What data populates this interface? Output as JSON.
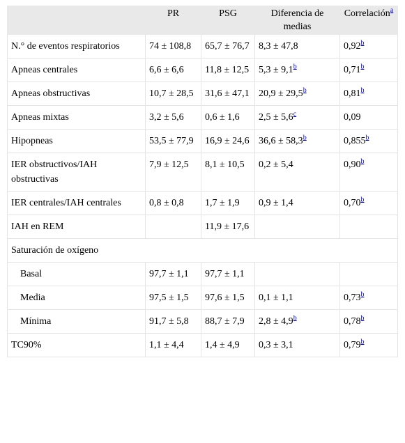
{
  "table": {
    "header": {
      "columns": [
        "PR",
        "PSG",
        "Diferencia de medias",
        "Correlación"
      ],
      "footnote_ref": "a"
    },
    "rows": [
      {
        "label": "N.° de eventos respiratorios",
        "cells": [
          {
            "text": "74 ± 108,8"
          },
          {
            "text": "65,7 ± 76,7"
          },
          {
            "text": "8,3 ± 47,8"
          },
          {
            "text": "0,92",
            "note": "b"
          }
        ]
      },
      {
        "label": "Apneas centrales",
        "cells": [
          {
            "text": "6,6 ± 6,6"
          },
          {
            "text": "11,8 ± 12,5"
          },
          {
            "text": "5,3 ± 9,1",
            "note": "b"
          },
          {
            "text": "0,71",
            "note": "b"
          }
        ]
      },
      {
        "label": "Apneas obstructivas",
        "cells": [
          {
            "text": "10,7 ± 28,5"
          },
          {
            "text": "31,6 ± 47,1"
          },
          {
            "text": "20,9 ± 29,5",
            "note": "b"
          },
          {
            "text": "0,81",
            "note": "b"
          }
        ]
      },
      {
        "label": "Apneas mixtas",
        "cells": [
          {
            "text": "3,2 ± 5,6"
          },
          {
            "text": "0,6 ± 1,6"
          },
          {
            "text": "2,5 ± 5,6",
            "note": "c"
          },
          {
            "text": "0,09"
          }
        ]
      },
      {
        "label": "Hipopneas",
        "cells": [
          {
            "text": "53,5 ± 77,9"
          },
          {
            "text": "16,9 ± 24,6"
          },
          {
            "text": "36,6 ± 58,3",
            "note": "b"
          },
          {
            "text": "0,855",
            "note": "b"
          }
        ]
      },
      {
        "label": "IER obstructivos/IAH obstructivas",
        "cells": [
          {
            "text": "7,9 ± 12,5"
          },
          {
            "text": "8,1 ± 10,5"
          },
          {
            "text": "0,2 ± 5,4"
          },
          {
            "text": "0,90",
            "note": "b"
          }
        ]
      },
      {
        "label": "IER centrales/IAH centrales",
        "cells": [
          {
            "text": "0,8 ± 0,8"
          },
          {
            "text": "1,7 ± 1,9"
          },
          {
            "text": "0,9 ± 1,4"
          },
          {
            "text": "0,70",
            "note": "b"
          }
        ]
      },
      {
        "label": "IAH en REM",
        "cells": [
          null,
          {
            "text": "11,9 ± 17,6"
          },
          null,
          null
        ]
      },
      {
        "label": "Saturación de oxígeno",
        "section": true
      },
      {
        "label": "Basal",
        "indent": true,
        "cells": [
          {
            "text": "97,7 ± 1,1"
          },
          {
            "text": "97,7 ± 1,1"
          },
          null,
          null
        ]
      },
      {
        "label": "Media",
        "indent": true,
        "cells": [
          {
            "text": "97,5 ± 1,5"
          },
          {
            "text": "97,6 ± 1,5"
          },
          {
            "text": "0,1 ± 1,1"
          },
          {
            "text": "0,73",
            "note": "b"
          }
        ]
      },
      {
        "label": "Mínima",
        "indent": true,
        "cells": [
          {
            "text": "91,7 ± 5,8"
          },
          {
            "text": "88,7 ± 7,9"
          },
          {
            "text": "2,8 ± 4,9",
            "note": "b"
          },
          {
            "text": "0,78",
            "note": "b"
          }
        ]
      },
      {
        "label": "TC90%",
        "cells": [
          {
            "text": "1,1 ± 4,4"
          },
          {
            "text": "1,4 ± 4,9"
          },
          {
            "text": "0,3 ± 3,1"
          },
          {
            "text": "0,79",
            "note": "b"
          }
        ]
      }
    ]
  }
}
